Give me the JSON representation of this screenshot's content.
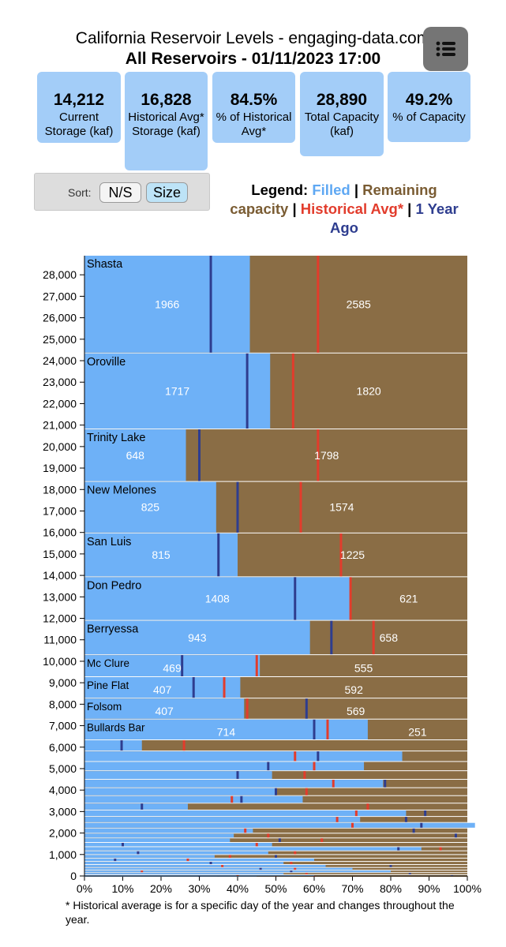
{
  "header": {
    "title": "California Reservoir Levels - engaging-data.com",
    "subtitle": "All Reservoirs - 01/11/2023 17:00"
  },
  "menu": {
    "icon": "menu-list-icon"
  },
  "stats": [
    {
      "value": "14,212",
      "label": "Current Storage (kaf)"
    },
    {
      "value": "16,828",
      "label": "Historical Avg* Storage (kaf)"
    },
    {
      "value": "84.5%",
      "label": "% of Historical Avg*"
    },
    {
      "value": "28,890",
      "label": "Total Capacity (kaf)"
    },
    {
      "value": "49.2%",
      "label": "% of Capacity"
    }
  ],
  "sort": {
    "label": "Sort:",
    "options": [
      "N/S",
      "Size"
    ],
    "selected": "Size"
  },
  "legend": {
    "prefix": "Legend:",
    "filled": "Filled",
    "sep": "|",
    "remaining": "Remaining capacity",
    "hist": "Historical Avg*",
    "ago": "1 Year Ago"
  },
  "colors": {
    "filled": "#6eb1f7",
    "remaining": "#8a6d45",
    "historical": "#e23c2c",
    "one_year_ago": "#2e3d8f",
    "stat_box": "#a3cdf8",
    "menu_button": "#757575"
  },
  "footnote": "* Historical average is for a specific day of the year and changes throughout the year.",
  "chart_data": {
    "type": "bar",
    "orientation": "horizontal stacked (variable-height marimekko)",
    "x_axis": {
      "label": "",
      "range": [
        0,
        100
      ],
      "ticks": [
        "0%",
        "10%",
        "20%",
        "30%",
        "40%",
        "50%",
        "60%",
        "70%",
        "80%",
        "90%",
        "100%"
      ]
    },
    "y_axis": {
      "label": "",
      "range": [
        0,
        28890
      ],
      "ticks": [
        "0",
        "1,000",
        "2,000",
        "3,000",
        "4,000",
        "5,000",
        "6,000",
        "7,000",
        "8,000",
        "9,000",
        "10,000",
        "11,000",
        "12,000",
        "13,000",
        "14,000",
        "15,000",
        "16,000",
        "17,000",
        "18,000",
        "19,000",
        "20,000",
        "21,000",
        "22,000",
        "23,000",
        "24,000",
        "25,000",
        "26,000",
        "27,000",
        "28,000"
      ]
    },
    "series_note": "Each bar height = total capacity (kaf); blue = filled %, brown = remaining; red marker = historical avg %, dark blue marker = 1 year ago %",
    "labeled_reservoirs": [
      {
        "name": "Shasta",
        "filled": "1966",
        "remaining": "2585",
        "filled_pct": 43.2,
        "hist_pct": 61.0,
        "ago_pct": 33.0
      },
      {
        "name": "Oroville",
        "filled": "1717",
        "remaining": "1820",
        "filled_pct": 48.5,
        "hist_pct": 54.5,
        "ago_pct": 42.5
      },
      {
        "name": "Trinity Lake",
        "filled": "648",
        "remaining": "1798",
        "filled_pct": 26.5,
        "hist_pct": 61.0,
        "ago_pct": 30.0
      },
      {
        "name": "New Melones",
        "filled": "825",
        "remaining": "1574",
        "filled_pct": 34.4,
        "hist_pct": 56.5,
        "ago_pct": 40.0
      },
      {
        "name": "San Luis",
        "filled": "815",
        "remaining": "1225",
        "filled_pct": 40.0,
        "hist_pct": 67.0,
        "ago_pct": 35.0
      },
      {
        "name": "Don Pedro",
        "filled": "1408",
        "remaining": "621",
        "filled_pct": 69.4,
        "hist_pct": 69.5,
        "ago_pct": 55.0
      },
      {
        "name": "Berryessa",
        "filled": "943",
        "remaining": "658",
        "filled_pct": 58.9,
        "hist_pct": 75.5,
        "ago_pct": 64.5
      },
      {
        "name": "Mc Clure",
        "filled": "469",
        "remaining": "555",
        "filled_pct": 45.8,
        "hist_pct": 45.0,
        "ago_pct": 25.5
      },
      {
        "name": "Pine Flat",
        "filled": "407",
        "remaining": "592",
        "filled_pct": 40.7,
        "hist_pct": 36.5,
        "ago_pct": 28.5
      },
      {
        "name": "Folsom",
        "filled": "407",
        "remaining": "569",
        "filled_pct": 41.7,
        "hist_pct": 42.5,
        "ago_pct": 58.0
      },
      {
        "name": "Bullards Bar",
        "filled": "714",
        "remaining": "251",
        "filled_pct": 74.0,
        "hist_pct": 63.5,
        "ago_pct": 60.0
      }
    ],
    "small_reservoirs": [
      {
        "capacity": 520,
        "filled_pct": 15.0,
        "hist_pct": 26.0,
        "ago_pct": 9.7
      },
      {
        "capacity": 490,
        "filled_pct": 83.0,
        "hist_pct": 55.0,
        "ago_pct": 61.0
      },
      {
        "capacity": 430,
        "filled_pct": 73.0,
        "hist_pct": 60.0,
        "ago_pct": 48.0
      },
      {
        "capacity": 400,
        "filled_pct": 49.0,
        "hist_pct": 57.5,
        "ago_pct": 40.0
      },
      {
        "capacity": 390,
        "filled_pct": 78.0,
        "hist_pct": 65.0,
        "ago_pct": 78.5
      },
      {
        "capacity": 370,
        "filled_pct": 50.0,
        "hist_pct": 58.0,
        "ago_pct": 50.0
      },
      {
        "capacity": 350,
        "filled_pct": 57.0,
        "hist_pct": 38.5,
        "ago_pct": 41.0
      },
      {
        "capacity": 320,
        "filled_pct": 27.0,
        "hist_pct": 74.0,
        "ago_pct": 15.0
      },
      {
        "capacity": 300,
        "filled_pct": 84.0,
        "hist_pct": 71.0,
        "ago_pct": 89.0
      },
      {
        "capacity": 280,
        "filled_pct": 72.0,
        "hist_pct": 66.0,
        "ago_pct": 84.0
      },
      {
        "capacity": 260,
        "filled_pct": 102.0,
        "hist_pct": 70.0,
        "ago_pct": 88.0
      },
      {
        "capacity": 240,
        "filled_pct": 44.0,
        "hist_pct": 42.0,
        "ago_pct": 86.0
      },
      {
        "capacity": 220,
        "filled_pct": 39.0,
        "hist_pct": 48.0,
        "ago_pct": 97.0
      },
      {
        "capacity": 210,
        "filled_pct": 38.0,
        "hist_pct": 62.0,
        "ago_pct": 51.0
      },
      {
        "capacity": 200,
        "filled_pct": 49.0,
        "hist_pct": 45.0,
        "ago_pct": 10.0
      },
      {
        "capacity": 190,
        "filled_pct": 88.0,
        "hist_pct": 93.0,
        "ago_pct": 82.0
      },
      {
        "capacity": 175,
        "filled_pct": 48.0,
        "hist_pct": 55.0,
        "ago_pct": 14.0
      },
      {
        "capacity": 165,
        "filled_pct": 34.0,
        "hist_pct": 38.0,
        "ago_pct": 50.0
      },
      {
        "capacity": 155,
        "filled_pct": 60.0,
        "hist_pct": 27.0,
        "ago_pct": 8.0
      },
      {
        "capacity": 145,
        "filled_pct": 52.0,
        "hist_pct": 54.0,
        "ago_pct": 33.0
      },
      {
        "capacity": 135,
        "filled_pct": 63.0,
        "hist_pct": 36.0,
        "ago_pct": 80.0
      },
      {
        "capacity": 125,
        "filled_pct": 70.0,
        "hist_pct": 55.0,
        "ago_pct": 46.0
      },
      {
        "capacity": 115,
        "filled_pct": 80.0,
        "hist_pct": 15.0,
        "ago_pct": 54.0
      },
      {
        "capacity": 100,
        "filled_pct": 52.0,
        "hist_pct": 58.0,
        "ago_pct": 85.0
      },
      {
        "capacity": 90,
        "filled_pct": 60.0,
        "hist_pct": 40.0,
        "ago_pct": 96.0
      },
      {
        "capacity": 80,
        "filled_pct": 40.0,
        "hist_pct": 70.0,
        "ago_pct": 16.0
      },
      {
        "capacity": 70,
        "filled_pct": 55.0,
        "hist_pct": 50.0,
        "ago_pct": 35.0
      },
      {
        "capacity": 55,
        "filled_pct": 45.0,
        "hist_pct": 60.0,
        "ago_pct": 30.0
      }
    ]
  }
}
